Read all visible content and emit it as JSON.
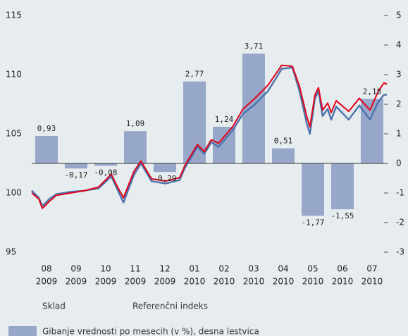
{
  "chart_data": {
    "type": "bar_line",
    "categories": [
      "08",
      "09",
      "10",
      "11",
      "12",
      "01",
      "02",
      "03",
      "04",
      "05",
      "06",
      "07"
    ],
    "category_years": [
      "2009",
      "2009",
      "2009",
      "2009",
      "2009",
      "2010",
      "2010",
      "2010",
      "2010",
      "2010",
      "2010",
      "2010"
    ],
    "bar_series": {
      "name": "Gibanje vrednosti po mesecih (v %), desna lestvica",
      "color": "#97a7c9",
      "axis": "y2",
      "values": [
        0.93,
        -0.17,
        -0.08,
        1.09,
        -0.29,
        2.77,
        1.24,
        3.71,
        0.51,
        -1.77,
        -1.55,
        2.18
      ],
      "value_labels": [
        "0,93",
        "-0,17",
        "-0,08",
        "1,09",
        "-0,29",
        "2,77",
        "1,24",
        "3,71",
        "0,51",
        "-1,77",
        "-1,55",
        "2,18"
      ]
    },
    "x": [
      0,
      0.24,
      0.36,
      0.6,
      0.83,
      1.31,
      1.79,
      2.26,
      2.69,
      2.86,
      3.1,
      3.45,
      3.69,
      4.05,
      4.52,
      5.0,
      5.17,
      5.6,
      5.83,
      6.07,
      6.31,
      6.79,
      7.14,
      7.5,
      7.98,
      8.45,
      8.81,
      9.05,
      9.29,
      9.4,
      9.57,
      9.69,
      9.83,
      10.0,
      10.12,
      10.29,
      10.71,
      11.07,
      11.43,
      11.71,
      11.9,
      12.0
    ],
    "series": [
      {
        "name": "Sklad",
        "color": "#4a72ad",
        "values": [
          100.2,
          99.6,
          98.9,
          99.5,
          99.9,
          100.1,
          100.2,
          100.4,
          101.4,
          100.5,
          99.2,
          101.5,
          102.5,
          101.0,
          100.8,
          101.1,
          102.1,
          103.9,
          103.3,
          104.3,
          103.9,
          105.3,
          106.7,
          107.4,
          108.6,
          110.5,
          110.6,
          108.6,
          105.9,
          105.0,
          108.0,
          108.6,
          106.5,
          107.1,
          106.2,
          107.3,
          106.2,
          107.4,
          106.2,
          107.7,
          108.3,
          108.3
        ]
      },
      {
        "name": "Referenčni indeks",
        "color": "#e2001a",
        "values": [
          100.0,
          99.5,
          98.7,
          99.3,
          99.8,
          100.0,
          100.2,
          100.5,
          101.6,
          100.7,
          99.6,
          101.8,
          102.7,
          101.2,
          101.0,
          101.3,
          102.3,
          104.1,
          103.5,
          104.5,
          104.2,
          105.6,
          107.1,
          107.9,
          109.1,
          110.8,
          110.7,
          109.0,
          106.5,
          105.6,
          108.3,
          108.9,
          107.0,
          107.6,
          106.8,
          107.8,
          106.9,
          108.0,
          107.0,
          108.6,
          109.3,
          109.2
        ]
      }
    ],
    "xlim": [
      0,
      12
    ],
    "ylim": [
      95,
      115
    ],
    "yticks": [
      95,
      100,
      105,
      110,
      115
    ],
    "y2lim": [
      -3,
      5
    ],
    "y2ticks": [
      -3,
      -2,
      -1,
      0,
      1,
      2,
      3,
      4,
      5
    ]
  }
}
